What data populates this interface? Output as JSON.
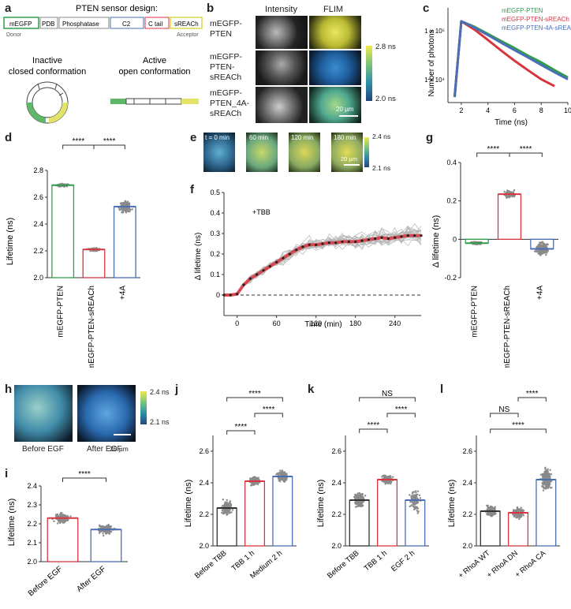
{
  "panel_labels": [
    "a",
    "b",
    "c",
    "d",
    "e",
    "f",
    "g",
    "h",
    "i",
    "j",
    "k",
    "l"
  ],
  "a": {
    "title": "PTEN sensor design:",
    "domains": [
      "mEGFP",
      "PDB",
      "Phosphatase",
      "C2",
      "C tail",
      "sREACh"
    ],
    "donor": "Donor",
    "acceptor": "Acceptor",
    "inactive_l1": "Inactive",
    "inactive_l2": "closed conformation",
    "active_l1": "Active",
    "active_l2": "open conformation"
  },
  "b": {
    "col_intensity": "Intensity",
    "col_flim": "FLIM",
    "rows": [
      "mEGFP-\nPTEN",
      "mEGFP-\nPTEN-\nsREACh",
      "mEGFP-\nPTEN_4A-\nsREACh"
    ],
    "cbar_max": "2.8 ns",
    "cbar_min": "2.0 ns",
    "scalebar": "20 μm"
  },
  "c": {
    "ylabel": "Number of photons",
    "xlabel": "Time (ns)",
    "xticks": [
      "2",
      "4",
      "6",
      "8",
      "10"
    ],
    "yticks": [
      "1 × 10⁵",
      "1 × 10⁴"
    ],
    "legend": [
      {
        "label": "mEGFP-PTEN",
        "color": "#2e9e4a"
      },
      {
        "label": "mEGFP-PTEN-sREACh",
        "color": "#d9353f"
      },
      {
        "label": "mEGFP-PTEN-4A-sREACh",
        "color": "#4a6fb5"
      }
    ]
  },
  "d": {
    "ylabel": "Lifetime (ns)",
    "yticks": [
      "2.0",
      "2.2",
      "2.4",
      "2.6",
      "2.8"
    ],
    "sig": [
      "****",
      "****"
    ],
    "categories": [
      "mEGFP-PTEN",
      "mEGFP-PTEN-sREACh",
      "+4A"
    ]
  },
  "e": {
    "times": [
      "t = 0 min",
      "60 min",
      "120 min",
      "180 min"
    ],
    "cbar_max": "2.4 ns",
    "cbar_min": "2.1 ns",
    "scalebar": "20 μm"
  },
  "f": {
    "ylabel": "Δ lifetime (ns)",
    "xlabel": "Time (min)",
    "annotation": "+TBB",
    "xticks": [
      "0",
      "60",
      "120",
      "180",
      "240"
    ],
    "yticks": [
      "0",
      "0.1",
      "0.2",
      "0.3",
      "0.4",
      "0.5"
    ]
  },
  "g": {
    "ylabel": "Δ lifetime (ns)",
    "yticks": [
      "-0.2",
      "0",
      "0.2",
      "0.4"
    ],
    "sig": [
      "****",
      "****"
    ],
    "categories": [
      "mEGFP-PTEN",
      "mEGFP-PTEN-sREACh",
      "+4A"
    ]
  },
  "h": {
    "before": "Before EGF",
    "after": "After EGF",
    "cbar_max": "2.4 ns",
    "cbar_min": "2.1 ns",
    "scalebar": "20 μm"
  },
  "i": {
    "ylabel": "Lifetime (ns)",
    "yticks": [
      "2.0",
      "2.1",
      "2.2",
      "2.3",
      "2.4"
    ],
    "sig": [
      "****"
    ],
    "categories": [
      "Before EGF",
      "After EGF"
    ]
  },
  "j": {
    "ylabel": "Lifetime (ns)",
    "yticks": [
      "2.0",
      "2.2",
      "2.4",
      "2.6"
    ],
    "sig": [
      "****",
      "****",
      "****"
    ],
    "categories": [
      "Before TBB",
      "TBB 1 h",
      "Medium 2 h"
    ]
  },
  "k": {
    "ylabel": "Lifetime (ns)",
    "yticks": [
      "2.0",
      "2.2",
      "2.4",
      "2.6"
    ],
    "sig": [
      "NS",
      "****",
      "****"
    ],
    "categories": [
      "Before TBB",
      "TBB 1 h",
      "EGF 2 h"
    ]
  },
  "l": {
    "ylabel": "Lifetime (ns)",
    "yticks": [
      "2.0",
      "2.2",
      "2.4",
      "2.6"
    ],
    "sig": [
      "NS",
      "****",
      "****"
    ],
    "categories": [
      "+ RhoA WT",
      "+ RhoA DN",
      "+ RhoA CA"
    ]
  },
  "colors": {
    "green": "#2e9e4a",
    "red": "#d9353f",
    "blue": "#4a6fb5",
    "black": "#333333",
    "yellow": "#d9d94a",
    "teal": "#5bb0c8"
  },
  "chart_data": [
    {
      "panel": "c",
      "type": "line",
      "xlabel": "Time (ns)",
      "ylabel": "Number of photons",
      "yscale": "log",
      "xlim": [
        1,
        10
      ],
      "series": [
        {
          "name": "mEGFP-PTEN",
          "x": [
            1.5,
            2,
            3,
            4,
            5,
            6,
            7,
            8,
            9,
            10
          ],
          "values": [
            2000,
            100000,
            75000,
            52000,
            36000,
            25000,
            17000,
            12000,
            8000,
            5500
          ]
        },
        {
          "name": "mEGFP-PTEN-sREACh",
          "x": [
            1.5,
            2,
            3,
            4,
            5,
            6,
            7,
            8,
            9
          ],
          "values": [
            2000,
            100000,
            65000,
            38000,
            22000,
            13000,
            8000,
            5000,
            3500
          ]
        },
        {
          "name": "mEGFP-PTEN-4A-sREACh",
          "x": [
            1.5,
            2,
            3,
            4,
            5,
            6,
            7,
            8,
            9,
            10
          ],
          "values": [
            2000,
            100000,
            72000,
            49000,
            33000,
            22500,
            15500,
            10500,
            7200,
            5000
          ]
        }
      ]
    },
    {
      "panel": "d",
      "type": "bar",
      "categories": [
        "mEGFP-PTEN",
        "mEGFP-PTEN-sREACh",
        "+4A"
      ],
      "values": [
        2.69,
        2.21,
        2.53
      ],
      "ylabel": "Lifetime (ns)",
      "ylim": [
        2.0,
        2.8
      ]
    },
    {
      "panel": "f",
      "type": "line",
      "xlabel": "Time (min)",
      "ylabel": "Δ lifetime (ns)",
      "xlim": [
        -20,
        280
      ],
      "ylim": [
        -0.1,
        0.5
      ],
      "series": [
        {
          "x": [
            -20,
            -10,
            0,
            10,
            20,
            30,
            40,
            50,
            60,
            70,
            80,
            90,
            100,
            110,
            120,
            130,
            140,
            150,
            160,
            170,
            180,
            190,
            200,
            210,
            220,
            230,
            240,
            250,
            260,
            270,
            280
          ],
          "values": [
            0,
            0,
            0.005,
            0.05,
            0.08,
            0.1,
            0.12,
            0.14,
            0.16,
            0.18,
            0.2,
            0.22,
            0.235,
            0.245,
            0.245,
            0.25,
            0.255,
            0.255,
            0.26,
            0.26,
            0.26,
            0.265,
            0.27,
            0.275,
            0.28,
            0.275,
            0.28,
            0.285,
            0.29,
            0.29,
            0.29
          ]
        }
      ]
    },
    {
      "panel": "g",
      "type": "bar",
      "categories": [
        "mEGFP-PTEN",
        "mEGFP-PTEN-sREACh",
        "+4A"
      ],
      "values": [
        -0.02,
        0.235,
        -0.05
      ],
      "ylabel": "Δ lifetime (ns)",
      "ylim": [
        -0.2,
        0.4
      ]
    },
    {
      "panel": "i",
      "type": "bar",
      "categories": [
        "Before EGF",
        "After EGF"
      ],
      "values": [
        2.23,
        2.17
      ],
      "ylabel": "Lifetime (ns)",
      "ylim": [
        2.0,
        2.4
      ]
    },
    {
      "panel": "j",
      "type": "bar",
      "categories": [
        "Before TBB",
        "TBB 1 h",
        "Medium 2 h"
      ],
      "values": [
        2.24,
        2.41,
        2.44
      ],
      "ylabel": "Lifetime (ns)",
      "ylim": [
        2.0,
        2.7
      ]
    },
    {
      "panel": "k",
      "type": "bar",
      "categories": [
        "Before TBB",
        "TBB 1 h",
        "EGF 2 h"
      ],
      "values": [
        2.29,
        2.42,
        2.29
      ],
      "ylabel": "Lifetime (ns)",
      "ylim": [
        2.0,
        2.7
      ]
    },
    {
      "panel": "l",
      "type": "bar",
      "categories": [
        "+ RhoA WT",
        "+ RhoA DN",
        "+ RhoA CA"
      ],
      "values": [
        2.22,
        2.21,
        2.42
      ],
      "ylabel": "Lifetime (ns)",
      "ylim": [
        2.0,
        2.7
      ]
    }
  ]
}
